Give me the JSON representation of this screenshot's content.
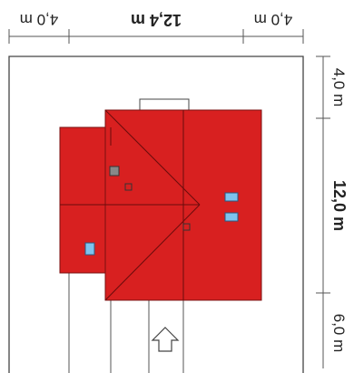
{
  "dimensions": {
    "top_left": "4,0 m",
    "top_center": "12,4 m",
    "top_right": "4,0 m",
    "right_top": "4,0 m",
    "right_middle": "12,0 m",
    "right_bottom": "6,0 m"
  },
  "colors": {
    "roof": "#d82020",
    "roof_edge": "#7a1010",
    "skylight": "#7ec3ee",
    "chimney": "#888888",
    "line": "#333333",
    "plot_border": "#444444"
  },
  "icons": {
    "entrance": "up-arrow-icon"
  }
}
